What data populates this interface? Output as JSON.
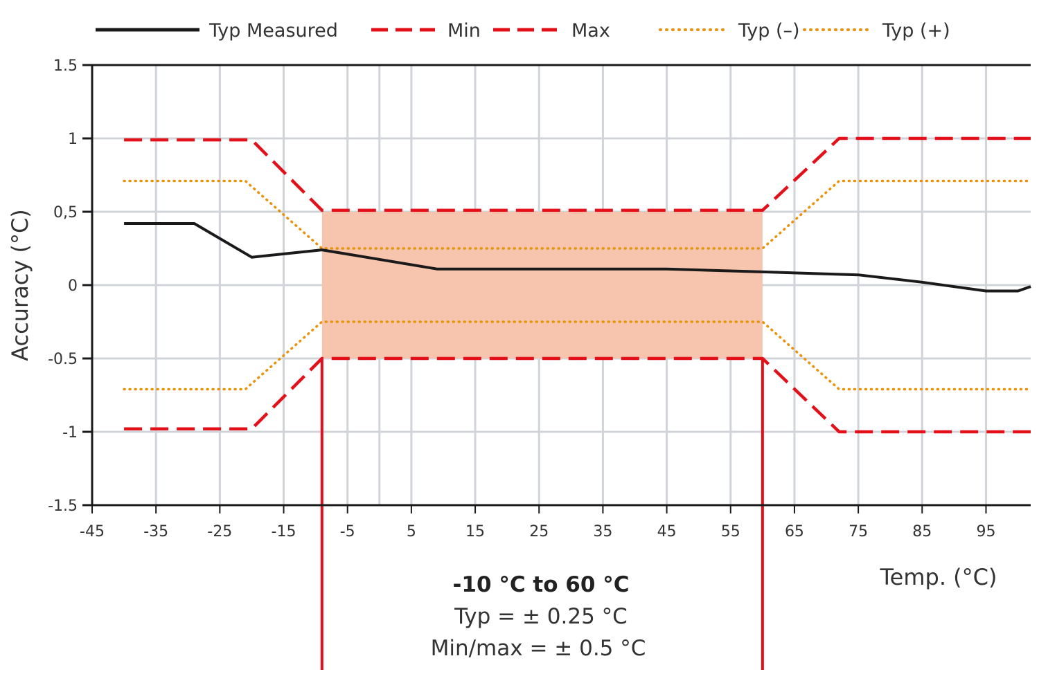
{
  "chart_data": {
    "type": "line",
    "xlabel": "Temp. (°C)",
    "ylabel": "Accuracy (°C)",
    "xlim": [
      -45,
      102
    ],
    "ylim": [
      -1.5,
      1.5
    ],
    "x_ticks": [
      -45,
      -35,
      -25,
      -15,
      -5,
      5,
      15,
      25,
      35,
      45,
      55,
      65,
      75,
      85,
      95
    ],
    "x_tick_labels": [
      "-45",
      "-35",
      "-25",
      "-15",
      "-5",
      "5",
      "15",
      "25",
      "35",
      "45",
      "55",
      "65",
      "75",
      "85",
      "95"
    ],
    "y_ticks": [
      1.5,
      1,
      0.5,
      0,
      -0.5,
      -1,
      -1.5
    ],
    "y_tick_labels": [
      "1.5",
      "1",
      "0,5",
      "0",
      "-0.5",
      "-1",
      "-1.5"
    ],
    "grid_x": [
      -35,
      -25,
      -15,
      -5,
      0,
      5,
      15,
      25,
      35,
      45,
      55,
      65,
      75,
      85,
      95
    ],
    "grid": true,
    "legend_position": "top",
    "series": [
      {
        "name": "Typ Measured",
        "style": "solid",
        "color": "#1a1a1a",
        "x": [
          -40,
          -29,
          -20,
          -9,
          9,
          45,
          60,
          75,
          85,
          95,
          100,
          102
        ],
        "y": [
          0.42,
          0.42,
          0.19,
          0.24,
          0.11,
          0.11,
          0.09,
          0.07,
          0.02,
          -0.04,
          -0.04,
          -0.01
        ]
      },
      {
        "name": "Min",
        "style": "dashed",
        "color": "#e3101a",
        "x": [
          -40,
          -20,
          -9,
          60,
          72,
          102
        ],
        "y": [
          -0.98,
          -0.98,
          -0.5,
          -0.5,
          -1,
          -1
        ]
      },
      {
        "name": "Max",
        "style": "dashed",
        "color": "#e3101a",
        "x": [
          -40,
          -20,
          -9,
          60,
          72,
          102
        ],
        "y": [
          0.99,
          0.99,
          0.51,
          0.51,
          1,
          1
        ]
      },
      {
        "name": "Typ (–)",
        "style": "dotted",
        "color": "#e8910a",
        "x": [
          -40,
          -21,
          -9,
          60,
          72,
          102
        ],
        "y": [
          -0.71,
          -0.71,
          -0.25,
          -0.25,
          -0.71,
          -0.71
        ]
      },
      {
        "name": "Typ (+)",
        "style": "dotted",
        "color": "#e8910a",
        "x": [
          -40,
          -21,
          -9,
          60,
          72,
          102
        ],
        "y": [
          0.71,
          0.71,
          0.25,
          0.25,
          0.71,
          0.71
        ]
      }
    ],
    "highlight_region": {
      "x": [
        -9,
        60
      ],
      "y": [
        -0.5,
        0.5
      ],
      "color": "#f7c4ad"
    },
    "range_markers": {
      "x": [
        -9,
        60
      ],
      "color": "#e3101a"
    },
    "annotation": {
      "title": "-10 °C to 60 °C",
      "line1": "Typ = ± 0.25 °C",
      "line2": "Min/max = ± 0.5 °C"
    },
    "colors": {
      "grid": "#d0d4d8",
      "axis": "#1a1a1a",
      "text": "#333333"
    }
  }
}
